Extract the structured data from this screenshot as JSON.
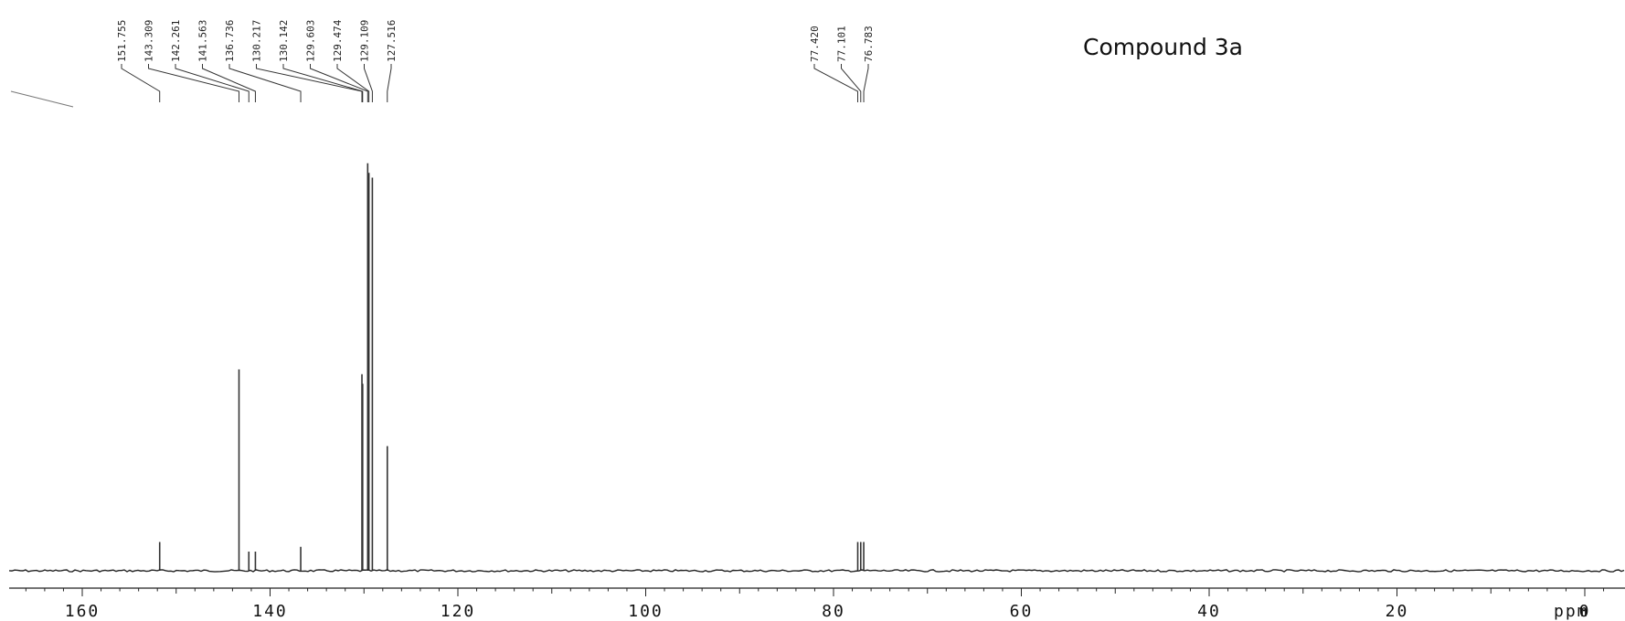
{
  "chart_data": {
    "type": "line",
    "title": "Compound 3a",
    "xlabel": "ppm",
    "xlim": [
      168,
      -4
    ],
    "x_reversed": true,
    "ylim": [
      0,
      1
    ],
    "x_ticks": [
      160,
      140,
      120,
      100,
      80,
      60,
      40,
      20,
      0
    ],
    "grid": false,
    "legend": "none",
    "peak_labels": [
      {
        "ppm": 151.755,
        "label": "151.755"
      },
      {
        "ppm": 143.309,
        "label": "143.309"
      },
      {
        "ppm": 142.261,
        "label": "142.261"
      },
      {
        "ppm": 141.563,
        "label": "141.563"
      },
      {
        "ppm": 136.736,
        "label": "136.736"
      },
      {
        "ppm": 130.217,
        "label": "130.217"
      },
      {
        "ppm": 130.142,
        "label": "130.142"
      },
      {
        "ppm": 129.603,
        "label": "129.603"
      },
      {
        "ppm": 129.474,
        "label": "129.474"
      },
      {
        "ppm": 129.109,
        "label": "129.109"
      },
      {
        "ppm": 127.516,
        "label": "127.516"
      },
      {
        "ppm": 77.42,
        "label": "77.420"
      },
      {
        "ppm": 77.101,
        "label": "77.101"
      },
      {
        "ppm": 76.783,
        "label": "76.783"
      }
    ],
    "peaks": [
      {
        "ppm": 151.755,
        "intensity": 0.06
      },
      {
        "ppm": 143.309,
        "intensity": 0.42
      },
      {
        "ppm": 142.261,
        "intensity": 0.04
      },
      {
        "ppm": 141.563,
        "intensity": 0.04
      },
      {
        "ppm": 136.736,
        "intensity": 0.05
      },
      {
        "ppm": 130.217,
        "intensity": 0.41
      },
      {
        "ppm": 130.142,
        "intensity": 0.39
      },
      {
        "ppm": 129.603,
        "intensity": 0.85
      },
      {
        "ppm": 129.474,
        "intensity": 0.83
      },
      {
        "ppm": 129.109,
        "intensity": 0.82
      },
      {
        "ppm": 127.516,
        "intensity": 0.26
      },
      {
        "ppm": 77.42,
        "intensity": 0.06
      },
      {
        "ppm": 77.101,
        "intensity": 0.06
      },
      {
        "ppm": 76.783,
        "intensity": 0.06
      }
    ]
  }
}
